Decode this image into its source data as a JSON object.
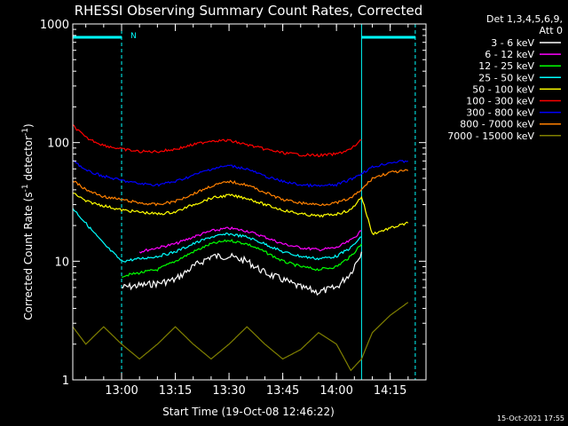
{
  "chart_data": {
    "type": "line",
    "title": "RHESSI Observing Summary Count Rates, Corrected",
    "xlabel": "Start Time (19-Oct-08 12:46:22)",
    "ylabel_main": "Corrected Count Rate (s",
    "ylabel_sup1": "-1",
    "ylabel_mid": " detector",
    "ylabel_sup2": "-1",
    "ylabel_end": ")",
    "yscale": "log",
    "xlim": [
      "12:46:22",
      "14:25:00"
    ],
    "ylim": [
      1,
      1000
    ],
    "x_ticks": [
      "13:00",
      "13:15",
      "13:30",
      "13:45",
      "14:00",
      "14:15"
    ],
    "y_ticks": [
      "1",
      "10",
      "100",
      "1000"
    ],
    "legend_header": [
      "Det 1,3,4,5,6,9,",
      "Att 0"
    ],
    "legend_position": "top-right-outside",
    "night_marker_label": "N",
    "timestamp": "15-Oct-2021 17:55",
    "series": [
      {
        "name": "3 - 6 keV",
        "color": "#ffffff",
        "x": [
          "13:00",
          "13:10",
          "13:15",
          "13:20",
          "13:25",
          "13:30",
          "13:35",
          "13:40",
          "13:45",
          "13:50",
          "13:55",
          "14:00",
          "14:04",
          "14:07"
        ],
        "y": [
          6,
          6.5,
          7,
          9,
          11,
          11,
          10,
          8,
          7,
          6,
          5.5,
          6,
          8,
          12
        ]
      },
      {
        "name": "6 - 12 keV",
        "color": "#ff00ff",
        "x": [
          "13:05",
          "13:10",
          "13:15",
          "13:20",
          "13:25",
          "13:30",
          "13:35",
          "13:40",
          "13:45",
          "13:50",
          "13:55",
          "14:00",
          "14:04",
          "14:07"
        ],
        "y": [
          12,
          13,
          14,
          16,
          18,
          19,
          18,
          16,
          14,
          13,
          12.5,
          13,
          15,
          18
        ]
      },
      {
        "name": "12 - 25 keV",
        "color": "#00ff00",
        "x": [
          "13:00",
          "13:10",
          "13:15",
          "13:20",
          "13:25",
          "13:30",
          "13:35",
          "13:40",
          "13:45",
          "13:50",
          "13:55",
          "14:00",
          "14:04",
          "14:07"
        ],
        "y": [
          7.5,
          8.5,
          10,
          12,
          14,
          15,
          14,
          12,
          10,
          9,
          8.5,
          9,
          11,
          14
        ]
      },
      {
        "name": "25 - 50 keV",
        "color": "#00ffff",
        "x": [
          "12:46:22",
          "12:55",
          "13:00",
          "13:10",
          "13:15",
          "13:20",
          "13:25",
          "13:30",
          "13:35",
          "13:40",
          "13:45",
          "13:50",
          "13:55",
          "14:00",
          "14:04",
          "14:07"
        ],
        "y": [
          28,
          14,
          10,
          11,
          12,
          14,
          16,
          17,
          16,
          14,
          12,
          11,
          10.5,
          11,
          13,
          16
        ]
      },
      {
        "name": "50 - 100 keV",
        "color": "#ffff00",
        "x": [
          "12:46:22",
          "12:50",
          "13:00",
          "13:10",
          "13:15",
          "13:20",
          "13:25",
          "13:30",
          "13:35",
          "13:40",
          "13:45",
          "13:50",
          "13:55",
          "14:00",
          "14:04",
          "14:07",
          "14:10",
          "14:15",
          "14:20"
        ],
        "y": [
          38,
          32,
          27,
          25,
          26,
          30,
          34,
          36,
          34,
          30,
          27,
          25,
          24,
          25,
          27,
          35,
          17,
          19,
          21
        ]
      },
      {
        "name": "100 - 300 keV",
        "color": "#ff0000",
        "x": [
          "12:46:22",
          "12:50",
          "12:55",
          "13:00",
          "13:05",
          "13:10",
          "13:15",
          "13:20",
          "13:25",
          "13:30",
          "13:35",
          "13:40",
          "13:45",
          "13:50",
          "13:55",
          "14:00",
          "14:04",
          "14:07"
        ],
        "y": [
          140,
          110,
          95,
          88,
          84,
          84,
          88,
          96,
          104,
          104,
          96,
          88,
          82,
          79,
          78,
          80,
          88,
          105
        ]
      },
      {
        "name": "300 - 800 keV",
        "color": "#0000ff",
        "x": [
          "12:46:22",
          "12:50",
          "12:55",
          "13:00",
          "13:05",
          "13:10",
          "13:15",
          "13:20",
          "13:25",
          "13:30",
          "13:35",
          "13:40",
          "13:45",
          "13:50",
          "13:55",
          "14:00",
          "14:04",
          "14:07",
          "14:10",
          "14:15",
          "14:20"
        ],
        "y": [
          72,
          58,
          52,
          48,
          45,
          44,
          47,
          53,
          60,
          64,
          60,
          52,
          47,
          44,
          43,
          44,
          49,
          55,
          62,
          68,
          70
        ]
      },
      {
        "name": "800 - 7000 keV",
        "color": "#ff8000",
        "x": [
          "12:46:22",
          "12:50",
          "12:55",
          "13:00",
          "13:05",
          "13:10",
          "13:15",
          "13:20",
          "13:25",
          "13:30",
          "13:35",
          "13:40",
          "13:45",
          "13:50",
          "13:55",
          "14:00",
          "14:04",
          "14:07",
          "14:10",
          "14:15",
          "14:20"
        ],
        "y": [
          48,
          40,
          35,
          33,
          31,
          30,
          32,
          37,
          43,
          47,
          44,
          38,
          33,
          31,
          30,
          31,
          34,
          40,
          50,
          56,
          58
        ]
      },
      {
        "name": "7000 - 15000 keV",
        "color": "#808000",
        "x": [
          "12:46:22",
          "12:50",
          "12:55",
          "13:00",
          "13:05",
          "13:10",
          "13:15",
          "13:20",
          "13:25",
          "13:30",
          "13:35",
          "13:40",
          "13:45",
          "13:50",
          "13:55",
          "14:00",
          "14:04",
          "14:07",
          "14:10",
          "14:15",
          "14:20"
        ],
        "y": [
          2.8,
          2.0,
          2.8,
          2.0,
          1.5,
          2.0,
          2.8,
          2.0,
          1.5,
          2.0,
          2.8,
          2.0,
          1.5,
          1.8,
          2.5,
          2.0,
          1.2,
          1.5,
          2.5,
          3.5,
          4.5
        ]
      }
    ]
  }
}
